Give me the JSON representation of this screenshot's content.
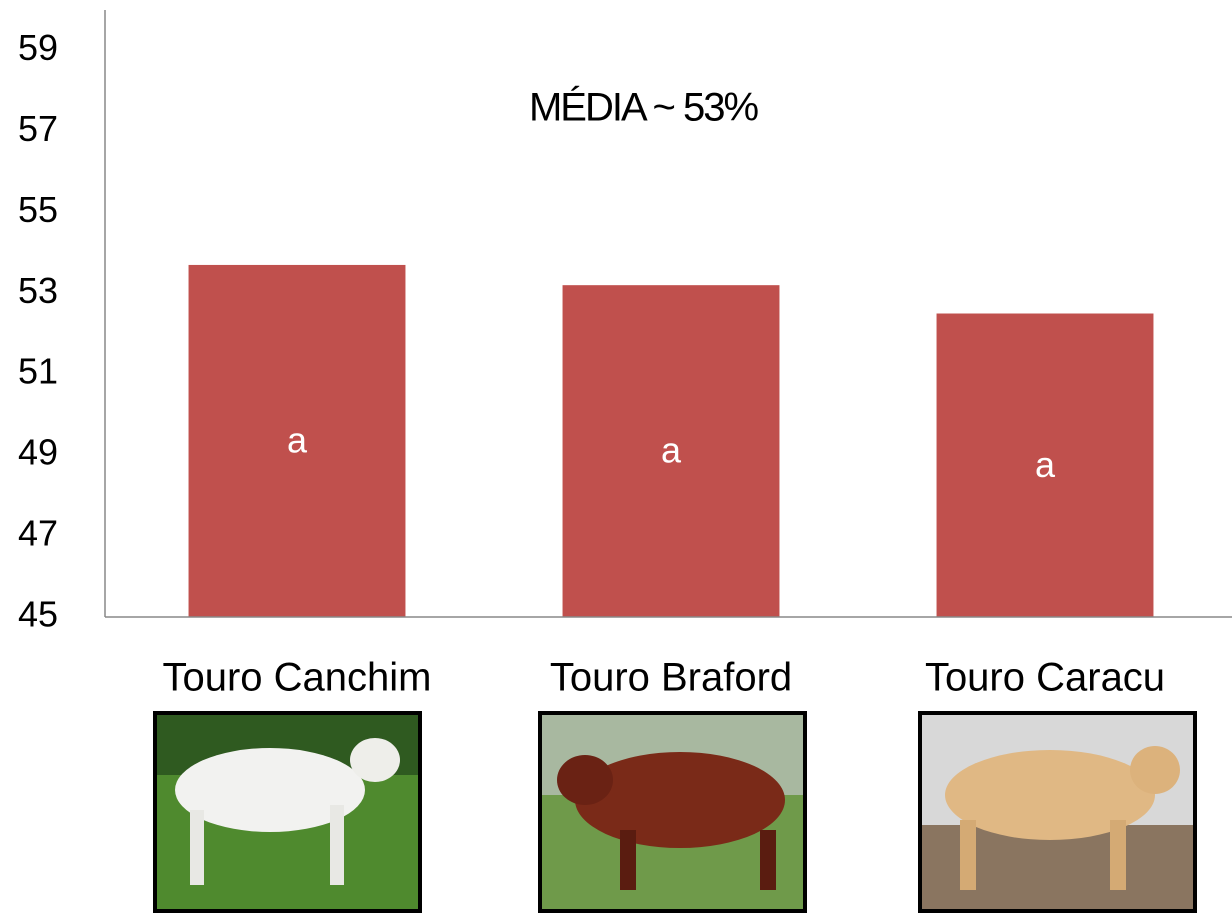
{
  "chart_data": {
    "type": "bar",
    "categories": [
      "Touro Canchim",
      "Touro Braford",
      "Touro Caracu"
    ],
    "values": [
      53.7,
      53.2,
      52.5
    ],
    "bar_annotations": [
      "a",
      "a",
      "a"
    ],
    "annotation": "MÉDIA ~ 53%",
    "color": "#c0504d",
    "ylim": [
      45,
      60
    ],
    "yticks": [
      45,
      47,
      49,
      51,
      53,
      55,
      57,
      59
    ],
    "grid": false
  }
}
